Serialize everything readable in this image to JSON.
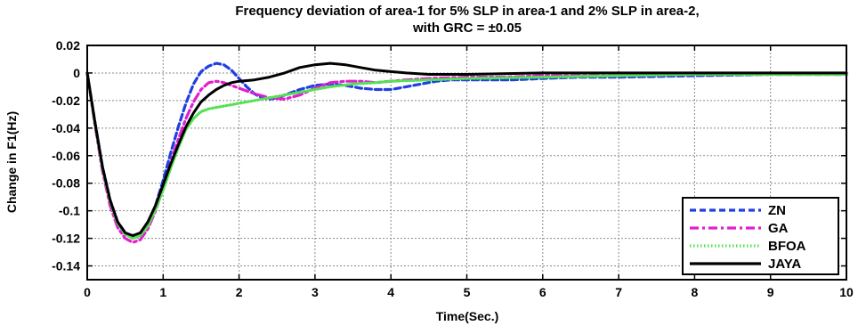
{
  "chart_data": {
    "type": "line",
    "title_line1": "Frequency deviation of area-1 for 5% SLP in area-1 and 2% SLP in area-2,",
    "title_line2": "with GRC = ±0.05",
    "xlabel": "Time(Sec.)",
    "ylabel": "Change in F1(Hz)",
    "xlim": [
      0,
      10
    ],
    "ylim": [
      -0.15,
      0.02
    ],
    "xticks": [
      0,
      1,
      2,
      3,
      4,
      5,
      6,
      7,
      8,
      9,
      10
    ],
    "yticks": [
      0.02,
      0,
      -0.02,
      -0.04,
      -0.06,
      -0.08,
      -0.1,
      -0.12,
      -0.14
    ],
    "ytick_labels": [
      "0.02",
      "0",
      "-0.02",
      "-0.04",
      "-0.06",
      "-0.08",
      "-0.1",
      "-0.12",
      "-0.14"
    ],
    "grid": true,
    "legend_position": "bottom-right",
    "series": [
      {
        "name": "ZN",
        "color": "#1f3fe0",
        "style": "dashed",
        "x": [
          0,
          0.1,
          0.2,
          0.3,
          0.4,
          0.5,
          0.6,
          0.7,
          0.8,
          0.9,
          1.0,
          1.1,
          1.2,
          1.3,
          1.4,
          1.5,
          1.6,
          1.7,
          1.8,
          1.9,
          2.0,
          2.1,
          2.2,
          2.3,
          2.4,
          2.5,
          2.6,
          2.7,
          2.8,
          3.0,
          3.2,
          3.4,
          3.6,
          3.8,
          4.0,
          4.2,
          4.4,
          4.6,
          4.8,
          5.0,
          5.3,
          5.6,
          6.0,
          6.5,
          7.0,
          8.0,
          9.0,
          10.0
        ],
        "y": [
          0,
          -0.035,
          -0.068,
          -0.092,
          -0.108,
          -0.116,
          -0.119,
          -0.117,
          -0.109,
          -0.096,
          -0.078,
          -0.058,
          -0.039,
          -0.022,
          -0.008,
          0.001,
          0.005,
          0.007,
          0.006,
          0.002,
          -0.004,
          -0.01,
          -0.015,
          -0.018,
          -0.019,
          -0.018,
          -0.016,
          -0.014,
          -0.012,
          -0.009,
          -0.008,
          -0.009,
          -0.011,
          -0.012,
          -0.012,
          -0.01,
          -0.008,
          -0.006,
          -0.005,
          -0.005,
          -0.005,
          -0.005,
          -0.004,
          -0.003,
          -0.003,
          -0.002,
          -0.001,
          -0.001
        ]
      },
      {
        "name": "GA",
        "color": "#e020d0",
        "style": "dashdot",
        "x": [
          0,
          0.1,
          0.2,
          0.3,
          0.4,
          0.5,
          0.6,
          0.7,
          0.8,
          0.9,
          1.0,
          1.1,
          1.2,
          1.3,
          1.4,
          1.5,
          1.6,
          1.7,
          1.8,
          1.9,
          2.0,
          2.1,
          2.2,
          2.4,
          2.6,
          2.8,
          3.0,
          3.2,
          3.4,
          3.6,
          3.8,
          4.0,
          4.2,
          4.5,
          5.0,
          5.5,
          6.0,
          7.0,
          8.0,
          9.0,
          10.0
        ],
        "y": [
          0,
          -0.037,
          -0.071,
          -0.096,
          -0.112,
          -0.12,
          -0.123,
          -0.121,
          -0.113,
          -0.1,
          -0.083,
          -0.065,
          -0.048,
          -0.033,
          -0.021,
          -0.012,
          -0.007,
          -0.006,
          -0.007,
          -0.009,
          -0.011,
          -0.013,
          -0.015,
          -0.018,
          -0.019,
          -0.016,
          -0.011,
          -0.007,
          -0.006,
          -0.006,
          -0.007,
          -0.006,
          -0.005,
          -0.004,
          -0.003,
          -0.003,
          -0.002,
          -0.002,
          -0.001,
          -0.001,
          -0.001
        ]
      },
      {
        "name": "BFOA",
        "color": "#55e055",
        "style": "dotted",
        "x": [
          0,
          0.1,
          0.2,
          0.3,
          0.4,
          0.5,
          0.6,
          0.7,
          0.8,
          0.9,
          1.0,
          1.1,
          1.2,
          1.3,
          1.4,
          1.5,
          1.6,
          1.7,
          1.8,
          2.0,
          2.2,
          2.4,
          2.6,
          2.8,
          3.0,
          3.2,
          3.5,
          3.8,
          4.0,
          4.5,
          5.0,
          6.0,
          7.0,
          8.0,
          9.0,
          10.0
        ],
        "y": [
          0,
          -0.036,
          -0.069,
          -0.093,
          -0.109,
          -0.117,
          -0.12,
          -0.118,
          -0.111,
          -0.099,
          -0.085,
          -0.069,
          -0.054,
          -0.041,
          -0.033,
          -0.028,
          -0.026,
          -0.025,
          -0.024,
          -0.022,
          -0.02,
          -0.018,
          -0.016,
          -0.014,
          -0.012,
          -0.01,
          -0.008,
          -0.007,
          -0.006,
          -0.005,
          -0.004,
          -0.003,
          -0.002,
          -0.001,
          -0.001,
          -0.001
        ]
      },
      {
        "name": "JAYA",
        "color": "#000000",
        "style": "solid",
        "x": [
          0,
          0.1,
          0.2,
          0.3,
          0.4,
          0.5,
          0.6,
          0.7,
          0.8,
          0.9,
          1.0,
          1.1,
          1.2,
          1.3,
          1.4,
          1.5,
          1.6,
          1.7,
          1.8,
          1.9,
          2.0,
          2.2,
          2.4,
          2.6,
          2.8,
          3.0,
          3.2,
          3.4,
          3.6,
          3.8,
          4.0,
          4.2,
          4.5,
          5.0,
          6.0,
          7.0,
          8.0,
          9.0,
          10.0
        ],
        "y": [
          0,
          -0.035,
          -0.068,
          -0.092,
          -0.108,
          -0.116,
          -0.118,
          -0.116,
          -0.108,
          -0.096,
          -0.081,
          -0.066,
          -0.052,
          -0.039,
          -0.029,
          -0.021,
          -0.016,
          -0.012,
          -0.009,
          -0.007,
          -0.006,
          -0.005,
          -0.003,
          0.0,
          0.004,
          0.006,
          0.007,
          0.006,
          0.004,
          0.002,
          0.001,
          0.0,
          -0.001,
          -0.001,
          0.0,
          0.0,
          0.0,
          0.0,
          0.0
        ]
      }
    ]
  }
}
